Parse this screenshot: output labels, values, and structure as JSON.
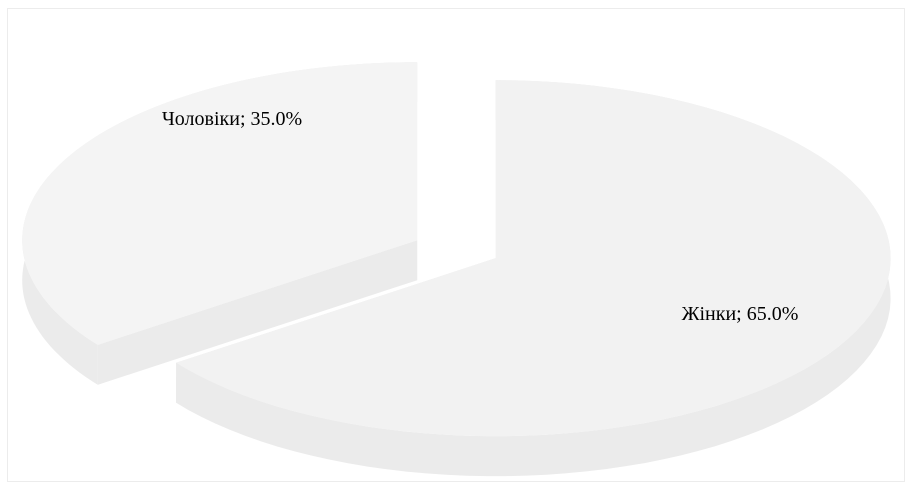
{
  "chart_data": {
    "type": "pie",
    "style": "3d-exploded",
    "slices": [
      {
        "label": "Жінки",
        "value": 65.0,
        "data_label": "Жінки; 65.0%",
        "color": "#f2f2f2"
      },
      {
        "label": "Чоловіки",
        "value": 35.0,
        "data_label": "Чоловіки; 35.0%",
        "color": "#f4f4f4"
      }
    ],
    "legend": "none",
    "colors": {
      "top": "#f2f2f2",
      "side": "#ebebeb",
      "border": "#ececec"
    }
  }
}
